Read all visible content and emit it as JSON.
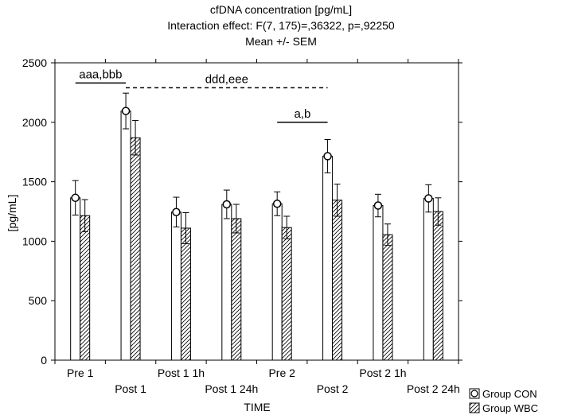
{
  "chart_data": {
    "type": "bar",
    "title": "cfDNA concentration [pg/mL]",
    "subtitle_lines": [
      "Interaction effect: F(7, 175)=,36322, p=,92250",
      "Mean +/- SEM"
    ],
    "xlabel": "TIME",
    "ylabel": "[pg/mL]",
    "ylim": [
      0,
      2500
    ],
    "yticks": [
      0,
      500,
      1000,
      1500,
      2000,
      2500
    ],
    "categories": [
      "Pre 1",
      "Post 1",
      "Post 1 1h",
      "Post 1 24h",
      "Pre 2",
      "Post 2",
      "Post 2 1h",
      "Post 2 24h"
    ],
    "grid": false,
    "legend_position": "bottom-right",
    "series": [
      {
        "name": "Group CON",
        "pattern": "open-circle",
        "values": [
          1365,
          2095,
          1245,
          1310,
          1315,
          1715,
          1300,
          1360
        ],
        "errors": [
          145,
          150,
          125,
          120,
          100,
          140,
          95,
          115
        ]
      },
      {
        "name": "Group WBC",
        "pattern": "diagonal-hatch",
        "values": [
          1215,
          1870,
          1110,
          1190,
          1115,
          1345,
          1055,
          1250
        ],
        "errors": [
          135,
          145,
          130,
          120,
          95,
          135,
          90,
          115
        ]
      }
    ],
    "annotations": [
      {
        "text": "aaa,bbb",
        "from": 0,
        "to": 1,
        "y": 2330,
        "style": "solid"
      },
      {
        "text": "ddd,eee",
        "from": 1,
        "to": 5,
        "y": 2290,
        "style": "dashed"
      },
      {
        "text": "a,b",
        "from": 4,
        "to": 5,
        "y": 2000,
        "style": "solid"
      }
    ]
  }
}
